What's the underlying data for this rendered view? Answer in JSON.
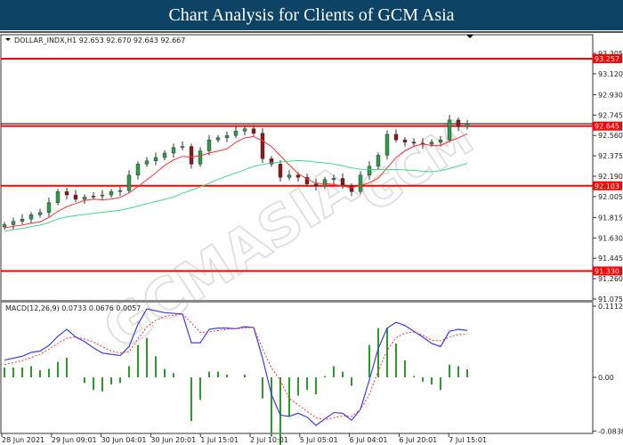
{
  "header": {
    "title": "Chart Analysis for Clients of GCM Asia"
  },
  "colors": {
    "header_bg": "#0d4466",
    "bull": "#2e9a4a",
    "bear": "#8b1a1a",
    "level_line": "#ff0000",
    "ma_fast": "#ff3030",
    "ma_slow": "#3ddc84",
    "macd": "#3a3aff",
    "signal": "#ff3030",
    "histogram": "#2e9a2e"
  },
  "watermark": {
    "text": "GCMASIA",
    "subtext": "GLOBAL CAPITAL MARKETS"
  },
  "chart_data": [
    {
      "type": "candlestick",
      "title": "DOLLAR_INDX,H1  92.653 92.670 92.643 92.667",
      "y_ticks": [
        "93.305",
        "93.120",
        "92.930",
        "92.745",
        "92.560",
        "92.375",
        "92.190",
        "92.005",
        "91.815",
        "91.630",
        "91.445",
        "91.260",
        "91.075"
      ],
      "ylim": [
        91.075,
        93.305
      ],
      "levels": [
        {
          "value": 93.257,
          "label": "93.257"
        },
        {
          "value": 92.645,
          "label": "92.645"
        },
        {
          "value": 92.103,
          "label": "92.103"
        },
        {
          "value": 91.33,
          "label": "91.330"
        }
      ],
      "current_price": 92.667,
      "closes": [
        91.75,
        91.78,
        91.8,
        91.84,
        91.86,
        91.95,
        92.05,
        92.02,
        91.98,
        92.0,
        92.01,
        92.02,
        92.05,
        92.06,
        92.2,
        92.3,
        92.33,
        92.36,
        92.4,
        92.45,
        92.46,
        92.3,
        92.42,
        92.52,
        92.54,
        92.56,
        92.6,
        92.62,
        92.58,
        92.35,
        92.3,
        92.18,
        92.2,
        92.18,
        92.12,
        92.1,
        92.16,
        92.17,
        92.1,
        92.05,
        92.2,
        92.28,
        92.38,
        92.57,
        92.52,
        92.5,
        92.49,
        92.48,
        92.5,
        92.52,
        92.7,
        92.64,
        92.667
      ],
      "x_labels": [
        "28 Jun 2021",
        "29 Jun 09:01",
        "30 Jun 04:01",
        "30 Jun 20:01",
        "1 Jul 15:01",
        "2 Jul 10:01",
        "5 Jul 05:01",
        "6 Jul 04:01",
        "6 Jul 20:01",
        "7 Jul 15:01"
      ]
    },
    {
      "type": "line",
      "title": "MACD(12,26,9) 0.0733 0.0676 0.0057",
      "y_ticks": [
        "0.1112",
        "0.00",
        "-0.0838"
      ],
      "ylim": [
        -0.0838,
        0.1112
      ],
      "series": [
        {
          "name": "MACD",
          "values": [
            0.027,
            0.03,
            0.033,
            0.039,
            0.041,
            0.05,
            0.064,
            0.075,
            0.063,
            0.056,
            0.046,
            0.038,
            0.036,
            0.034,
            0.048,
            0.083,
            0.107,
            0.104,
            0.101,
            0.1,
            0.099,
            0.054,
            0.054,
            0.075,
            0.077,
            0.077,
            0.076,
            0.079,
            0.078,
            0.03,
            -0.027,
            -0.059,
            -0.061,
            -0.056,
            -0.062,
            -0.075,
            -0.065,
            -0.055,
            -0.056,
            -0.067,
            -0.05,
            -0.004,
            0.045,
            0.077,
            0.086,
            0.081,
            0.072,
            0.063,
            0.053,
            0.048,
            0.072,
            0.075,
            0.0733
          ]
        },
        {
          "name": "Signal",
          "values": [
            0.02,
            0.023,
            0.026,
            0.031,
            0.036,
            0.044,
            0.053,
            0.061,
            0.063,
            0.06,
            0.055,
            0.048,
            0.041,
            0.038,
            0.04,
            0.06,
            0.079,
            0.089,
            0.095,
            0.097,
            0.099,
            0.085,
            0.07,
            0.071,
            0.073,
            0.075,
            0.076,
            0.077,
            0.078,
            0.045,
            0.015,
            -0.005,
            -0.033,
            -0.043,
            -0.053,
            -0.063,
            -0.066,
            -0.063,
            -0.06,
            -0.061,
            -0.05,
            -0.027,
            0.01,
            0.042,
            0.062,
            0.069,
            0.071,
            0.066,
            0.058,
            0.057,
            0.063,
            0.067,
            0.0676
          ]
        }
      ]
    }
  ]
}
